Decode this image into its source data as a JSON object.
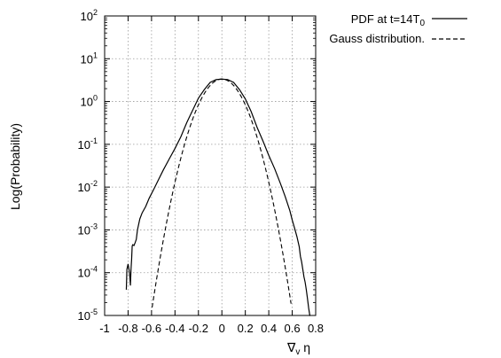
{
  "chart_data": {
    "type": "line",
    "xlabel": "∇",
    "xlabel_sub": "v",
    "xlabel_tail": " η",
    "ylabel": "Log(Probability)",
    "xlim": [
      -1,
      0.8
    ],
    "ylim": [
      1e-05,
      100
    ],
    "yscale": "log",
    "grid": true,
    "legend_position": "top-right",
    "xticks": [
      "-1",
      "-0.8",
      "-0.6",
      "-0.4",
      "-0.2",
      "0",
      "0.2",
      "0.4",
      "0.6",
      "0.8"
    ],
    "yticks": [
      {
        "base": "10",
        "exp": "-5"
      },
      {
        "base": "10",
        "exp": "-4"
      },
      {
        "base": "10",
        "exp": "-3"
      },
      {
        "base": "10",
        "exp": "-2"
      },
      {
        "base": "10",
        "exp": "-1"
      },
      {
        "base": "10",
        "exp": "0"
      },
      {
        "base": "10",
        "exp": "1"
      },
      {
        "base": "10",
        "exp": "2"
      }
    ],
    "series": [
      {
        "name": "PDF at t=14T",
        "name_sub": "0",
        "style": "solid",
        "x": [
          -0.815,
          -0.81,
          -0.8,
          -0.79,
          -0.785,
          -0.78,
          -0.775,
          -0.77,
          -0.765,
          -0.76,
          -0.75,
          -0.74,
          -0.73,
          -0.72,
          -0.7,
          -0.68,
          -0.65,
          -0.62,
          -0.58,
          -0.54,
          -0.5,
          -0.45,
          -0.4,
          -0.35,
          -0.3,
          -0.25,
          -0.2,
          -0.15,
          -0.1,
          -0.05,
          0.0,
          0.05,
          0.1,
          0.15,
          0.2,
          0.25,
          0.3,
          0.35,
          0.4,
          0.45,
          0.5,
          0.54,
          0.58,
          0.6,
          0.62,
          0.64,
          0.66,
          0.67,
          0.68,
          0.69,
          0.7,
          0.71,
          0.72,
          0.73,
          0.74,
          0.75,
          0.755
        ],
        "y": [
          4e-05,
          0.00012,
          0.00016,
          0.00011,
          8e-05,
          5e-05,
          0.00012,
          0.0002,
          0.00042,
          0.00045,
          0.00043,
          0.0005,
          0.0006,
          0.001,
          0.0018,
          0.0025,
          0.0035,
          0.0055,
          0.009,
          0.015,
          0.025,
          0.045,
          0.08,
          0.15,
          0.32,
          0.62,
          1.2,
          1.9,
          2.8,
          3.25,
          3.35,
          3.25,
          2.8,
          1.9,
          1.15,
          0.58,
          0.25,
          0.12,
          0.055,
          0.027,
          0.012,
          0.006,
          0.0028,
          0.0017,
          0.0011,
          0.0007,
          0.0004,
          0.00024,
          0.00018,
          0.00012,
          8e-05,
          6e-05,
          4e-05,
          2.5e-05,
          1.5e-05,
          1e-05,
          1e-05
        ]
      },
      {
        "name": "Gauss distribution.",
        "style": "dashed",
        "mean": 0.0,
        "peak": 3.35,
        "sigma": 0.12,
        "x_range": [
          -0.595,
          0.59
        ]
      }
    ]
  }
}
